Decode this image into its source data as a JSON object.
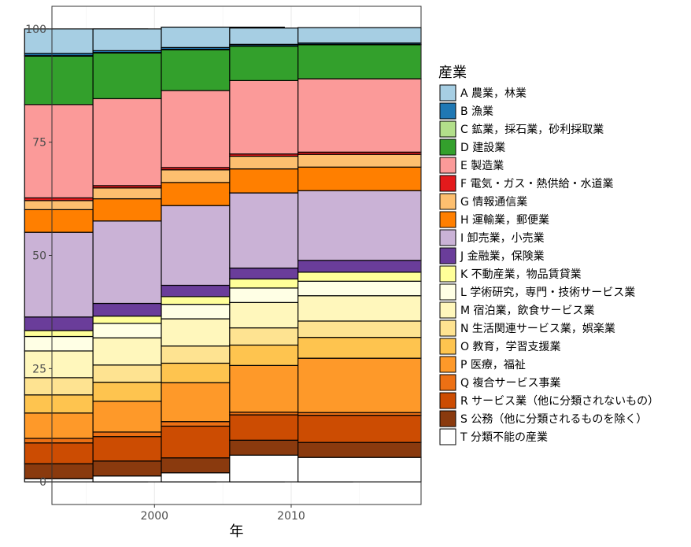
{
  "chart_data": {
    "type": "bar",
    "stacked": true,
    "categories": [
      "1995",
      "2000",
      "2005",
      "2010",
      "2015"
    ],
    "xlabel": "年",
    "ylabel": "",
    "ylim": [
      -5,
      105
    ],
    "xlim": [
      1992.5,
      2019.5
    ],
    "x_ticks": [
      2000,
      2010
    ],
    "y_ticks": [
      0,
      25,
      50,
      75,
      100
    ],
    "legend_title": "産業",
    "legend_position": "right",
    "grid": true,
    "series": [
      {
        "name": "T 分類不能の産業",
        "color": "#FFFFFF",
        "values": [
          0.7,
          1.3,
          2.0,
          5.9,
          5.4
        ]
      },
      {
        "name": "S 公務（他に分類されるものを除く）",
        "color": "#8A3A0E",
        "values": [
          3.3,
          3.3,
          3.3,
          3.3,
          3.3
        ]
      },
      {
        "name": "R サービス業（他に分類されないもの）",
        "color": "#CC4C02",
        "values": [
          4.6,
          5.4,
          7.0,
          5.6,
          6.0
        ]
      },
      {
        "name": "Q 複合サービス事業",
        "color": "#EC7014",
        "values": [
          1.0,
          1.0,
          1.0,
          0.6,
          0.6
        ]
      },
      {
        "name": "P 医療，福祉",
        "color": "#FE9929",
        "values": [
          5.6,
          6.8,
          8.6,
          10.3,
          12.0
        ]
      },
      {
        "name": "O 教育，学習支援業",
        "color": "#FEC44F",
        "values": [
          4.0,
          4.2,
          4.3,
          4.5,
          4.6
        ]
      },
      {
        "name": "N 生活関連サービス業，娯楽業",
        "color": "#FEE391",
        "values": [
          3.8,
          3.8,
          3.8,
          3.8,
          3.6
        ]
      },
      {
        "name": "M 宿泊業，飲食サービス業",
        "color": "#FFF7BC",
        "values": [
          5.9,
          6.0,
          6.0,
          5.6,
          5.6
        ]
      },
      {
        "name": "L 学術研究，専門・技術サービス業",
        "color": "#FFFFE5",
        "values": [
          3.2,
          3.2,
          3.2,
          3.2,
          3.2
        ]
      },
      {
        "name": "K 不動産業，物品賃貸業",
        "color": "#FFFF99",
        "values": [
          1.3,
          1.6,
          1.7,
          2.0,
          2.0
        ]
      },
      {
        "name": "J 金融業，保険業",
        "color": "#6A3D9A",
        "values": [
          3.0,
          2.8,
          2.5,
          2.4,
          2.6
        ]
      },
      {
        "name": "I 卸売業，小売業",
        "color": "#CAB2D6",
        "values": [
          18.7,
          18.2,
          17.6,
          16.6,
          15.4
        ]
      },
      {
        "name": "H 運輸業，郵便業",
        "color": "#FF7F00",
        "values": [
          5.0,
          4.9,
          5.1,
          5.3,
          5.2
        ]
      },
      {
        "name": "G 情報通信業",
        "color": "#FDBF6F",
        "values": [
          2.0,
          2.4,
          2.8,
          2.8,
          2.8
        ]
      },
      {
        "name": "F 電気・ガス・熱供給・水道業",
        "color": "#E31A1C",
        "values": [
          0.6,
          0.5,
          0.5,
          0.5,
          0.5
        ]
      },
      {
        "name": "E 製造業",
        "color": "#FB9A99",
        "values": [
          20.6,
          19.2,
          17.0,
          16.2,
          16.2
        ]
      },
      {
        "name": "D 建設業",
        "color": "#33A02C",
        "values": [
          10.7,
          10.1,
          9.0,
          7.6,
          7.5
        ]
      },
      {
        "name": "C 鉱業，採石業，砂利採取業",
        "color": "#B2DF8A",
        "values": [
          0.1,
          0.1,
          0.1,
          0.1,
          0.1
        ]
      },
      {
        "name": "B 漁業",
        "color": "#1F78B4",
        "values": [
          0.5,
          0.4,
          0.4,
          0.3,
          0.3
        ]
      },
      {
        "name": "A 農業，林業",
        "color": "#A6CEE3",
        "values": [
          5.4,
          4.8,
          4.5,
          3.6,
          3.4
        ]
      }
    ],
    "legend_order": [
      "A 農業，林業",
      "B 漁業",
      "C 鉱業，採石業，砂利採取業",
      "D 建設業",
      "E 製造業",
      "F 電気・ガス・熱供給・水道業",
      "G 情報通信業",
      "H 運輸業，郵便業",
      "I 卸売業，小売業",
      "J 金融業，保険業",
      "K 不動産業，物品賃貸業",
      "L 学術研究，専門・技術サービス業",
      "M 宿泊業，飲食サービス業",
      "N 生活関連サービス業，娯楽業",
      "O 教育，学習支援業",
      "P 医療，福祉",
      "Q 複合サービス事業",
      "R サービス業（他に分類されないもの）",
      "S 公務（他に分類されるものを除く）",
      "T 分類不能の産業"
    ]
  }
}
